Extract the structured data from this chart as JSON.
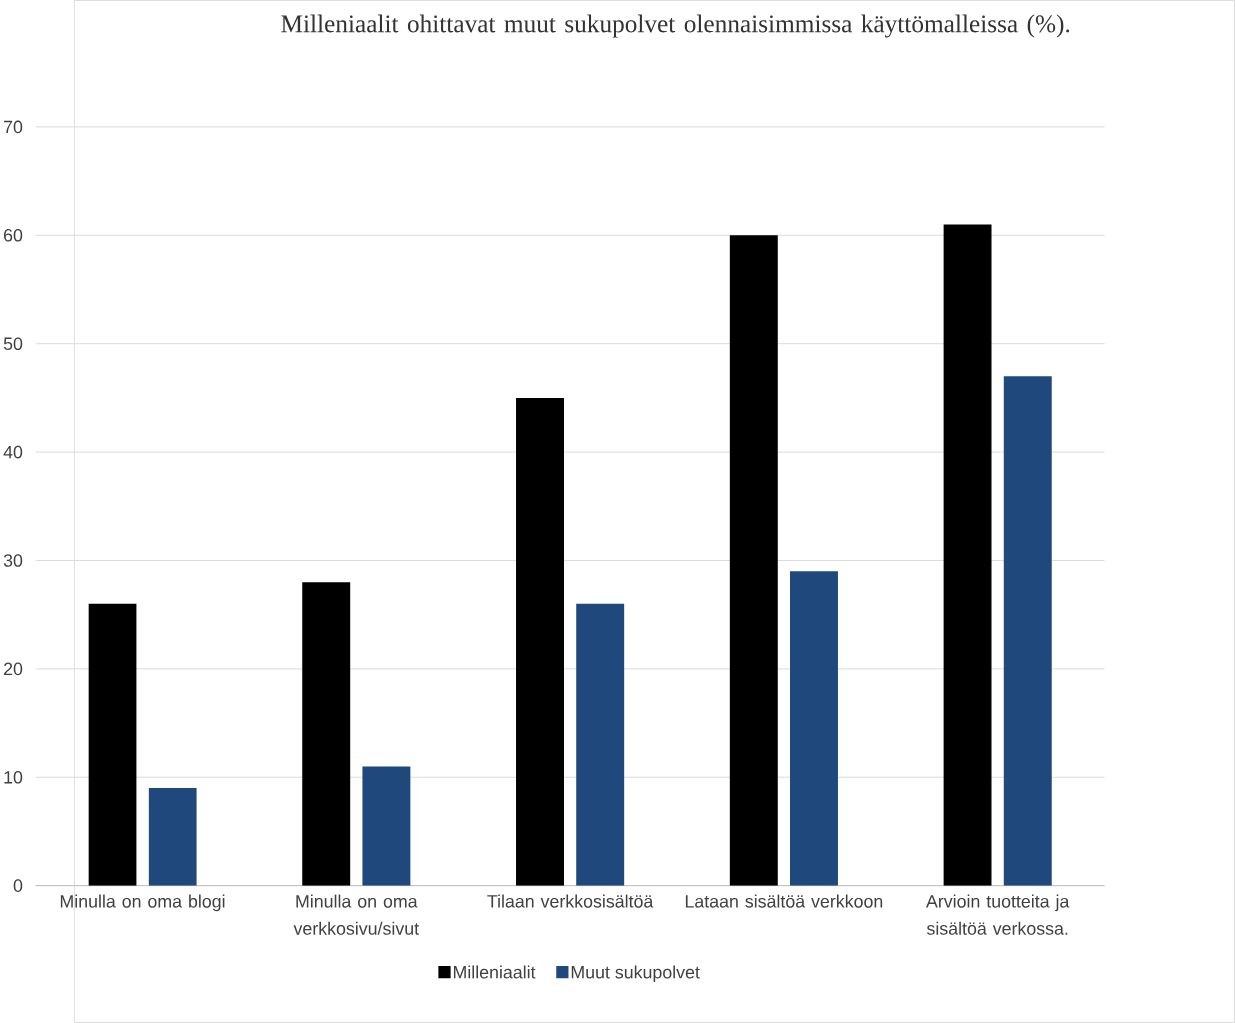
{
  "chart_data": {
    "type": "bar",
    "title": "Milleniaalit ohittavat muut sukupolvet olennaisimmissa käyttömalleissa (%).",
    "categories": [
      "Minulla on oma blogi",
      "Minulla on oma verkkosivu/sivut",
      "Tilaan verkkosisältöä",
      "Lataan sisältöä verkkoon",
      "Arvioin tuotteita ja sisältöä verkossa."
    ],
    "series": [
      {
        "name": "Milleniaalit",
        "color": "#000000",
        "values": [
          26,
          28,
          45,
          60,
          61
        ]
      },
      {
        "name": "Muut sukupolvet",
        "color": "#1f497d",
        "values": [
          9,
          11,
          26,
          29,
          47
        ]
      }
    ],
    "ylim": [
      0,
      70
    ],
    "yticks": [
      0,
      10,
      20,
      30,
      40,
      50,
      60,
      70
    ],
    "grid": "y",
    "legend": "bottom"
  }
}
